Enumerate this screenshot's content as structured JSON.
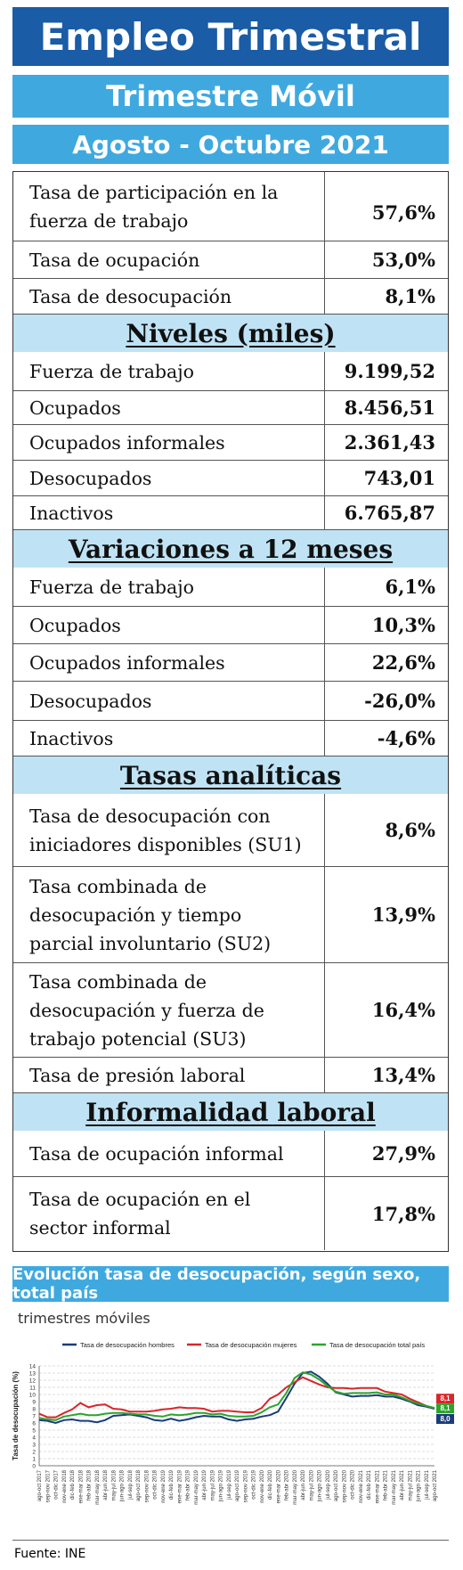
{
  "header": {
    "title": "Empleo Trimestral",
    "subtitle": "Trimestre Móvil",
    "period": "Agosto - Octubre 2021"
  },
  "rates": [
    {
      "label": "Tasa de participación en la fuerza de trabajo",
      "value": "57,6%"
    },
    {
      "label": "Tasa de ocupación",
      "value": "53,0%"
    },
    {
      "label": "Tasa de desocupación",
      "value": "8,1%"
    }
  ],
  "niveles": {
    "title": "Niveles  (miles)",
    "rows": [
      {
        "label": "Fuerza de trabajo",
        "value": "9.199,52"
      },
      {
        "label": "Ocupados",
        "value": "8.456,51"
      },
      {
        "label": "Ocupados informales",
        "value": "2.361,43"
      },
      {
        "label": "Desocupados",
        "value": "743,01"
      },
      {
        "label": "Inactivos",
        "value": "6.765,87"
      }
    ]
  },
  "variaciones": {
    "title": "Variaciones a 12 meses",
    "rows": [
      {
        "label": "Fuerza de trabajo",
        "value": "6,1%"
      },
      {
        "label": "Ocupados",
        "value": "10,3%"
      },
      {
        "label": "Ocupados informales",
        "value": "22,6%"
      },
      {
        "label": "Desocupados",
        "value": "-26,0%"
      },
      {
        "label": "Inactivos",
        "value": "-4,6%"
      }
    ]
  },
  "tasas": {
    "title": "Tasas  analíticas",
    "rows": [
      {
        "label": "Tasa de desocupación con iniciadores disponibles (SU1)",
        "value": "8,6%"
      },
      {
        "label": "Tasa combinada de desocupación y tiempo parcial involuntario (SU2)",
        "value": "13,9%"
      },
      {
        "label": "Tasa combinada de desocupación y fuerza de trabajo potencial (SU3)",
        "value": "16,4%"
      },
      {
        "label": "Tasa de presión laboral",
        "value": "13,4%"
      }
    ]
  },
  "informalidad": {
    "title": "Informalidad  laboral",
    "rows": [
      {
        "label": "Tasa de ocupación informal",
        "value": "27,9%"
      },
      {
        "label": "Tasa de ocupación en el sector informal",
        "value": "17,8%"
      }
    ]
  },
  "chart_section": {
    "title": "Evolución tasa de desocupación, según sexo, total país",
    "subtitle": "trimestres móviles"
  },
  "source": "Fuente: INE",
  "chart_data": {
    "type": "line",
    "ylabel": "Tasa de desocupación (%)",
    "ylim": [
      0,
      14
    ],
    "yticks": [
      0,
      1,
      2,
      3,
      4,
      5,
      6,
      7,
      8,
      9,
      10,
      11,
      12,
      13,
      14
    ],
    "grid": true,
    "legend_position": "top",
    "categories": [
      "ago-oct 2017",
      "sep-nov 2017",
      "oct-dic 2017",
      "nov-ene 2018",
      "dic-feb 2018",
      "ene-mar 2018",
      "feb-abr 2018",
      "mar-may 2018",
      "abr-jun 2018",
      "may-jul 2018",
      "jun-ago 2018",
      "jul-sep 2018",
      "ago-oct 2018",
      "sep-nov 2018",
      "oct-dic 2018",
      "nov-ene 2019",
      "dic-feb 2019",
      "ene-mar 2019",
      "feb-abr 2019",
      "mar-may 2019",
      "abr-jun 2019",
      "may-jul 2019",
      "jun-ago 2019",
      "jul-sep 2019",
      "ago-oct 2019",
      "sep-nov 2019",
      "oct-dic 2019",
      "nov-ene 2020",
      "dic-feb 2020",
      "ene-mar 2020",
      "feb-abr 2020",
      "mar-may 2020",
      "abr-jun 2020",
      "may-jul 2020",
      "jun-ago 2020",
      "jul-sep 2020",
      "ago-oct 2020",
      "sep-nov 2020",
      "oct-dic 2020",
      "nov-ene 2021",
      "dic-feb 2021",
      "ene-mar 2021",
      "feb-abr 2021",
      "mar-may 2021",
      "abr-jun 2021",
      "may-jul 2021",
      "jun-ago 2021",
      "jul-sep 2021",
      "ago-oct 2021"
    ],
    "series": [
      {
        "name": "Tasa de desocupación hombres",
        "color": "#1a3c7a",
        "values": [
          6.4,
          6.3,
          6.0,
          6.4,
          6.5,
          6.3,
          6.3,
          6.1,
          6.4,
          7.0,
          7.1,
          7.2,
          7.0,
          6.8,
          6.4,
          6.3,
          6.6,
          6.3,
          6.5,
          6.8,
          7.0,
          6.9,
          6.9,
          6.5,
          6.3,
          6.5,
          6.6,
          6.9,
          7.1,
          7.6,
          9.5,
          11.5,
          13.0,
          13.2,
          12.5,
          11.5,
          10.3,
          10.0,
          9.7,
          9.8,
          9.8,
          9.9,
          9.7,
          9.7,
          9.4,
          9.0,
          8.5,
          8.3,
          8.0
        ]
      },
      {
        "name": "Tasa de desocupación mujeres",
        "color": "#d9262b",
        "values": [
          7.3,
          6.8,
          6.8,
          7.4,
          7.9,
          8.8,
          8.2,
          8.5,
          8.6,
          8.0,
          7.9,
          7.6,
          7.6,
          7.6,
          7.7,
          7.9,
          8.0,
          8.2,
          8.1,
          8.1,
          8.0,
          7.6,
          7.7,
          7.7,
          7.6,
          7.5,
          7.5,
          8.1,
          9.4,
          10.0,
          11.0,
          11.7,
          12.4,
          11.9,
          11.4,
          11.0,
          10.9,
          10.9,
          10.8,
          10.9,
          10.9,
          10.9,
          10.4,
          10.2,
          10.0,
          9.4,
          8.9,
          8.4,
          8.1
        ]
      },
      {
        "name": "Tasa de desocupación total país",
        "color": "#2ba52b",
        "values": [
          6.7,
          6.5,
          6.4,
          6.9,
          7.1,
          7.3,
          7.1,
          7.1,
          7.3,
          7.4,
          7.4,
          7.3,
          7.2,
          7.2,
          7.0,
          6.9,
          7.2,
          7.1,
          7.2,
          7.4,
          7.4,
          7.2,
          7.3,
          7.0,
          6.9,
          6.9,
          7.0,
          7.5,
          8.2,
          8.6,
          10.2,
          12.3,
          13.1,
          12.8,
          12.1,
          11.2,
          10.4,
          10.1,
          10.2,
          10.2,
          10.2,
          10.3,
          10.0,
          10.0,
          9.6,
          9.1,
          8.7,
          8.4,
          8.1
        ]
      }
    ],
    "end_labels": [
      {
        "text": "8,1",
        "color": "#d9262b"
      },
      {
        "text": "8,1",
        "color": "#2ba52b"
      },
      {
        "text": "8,0",
        "color": "#1a3c7a"
      }
    ]
  }
}
